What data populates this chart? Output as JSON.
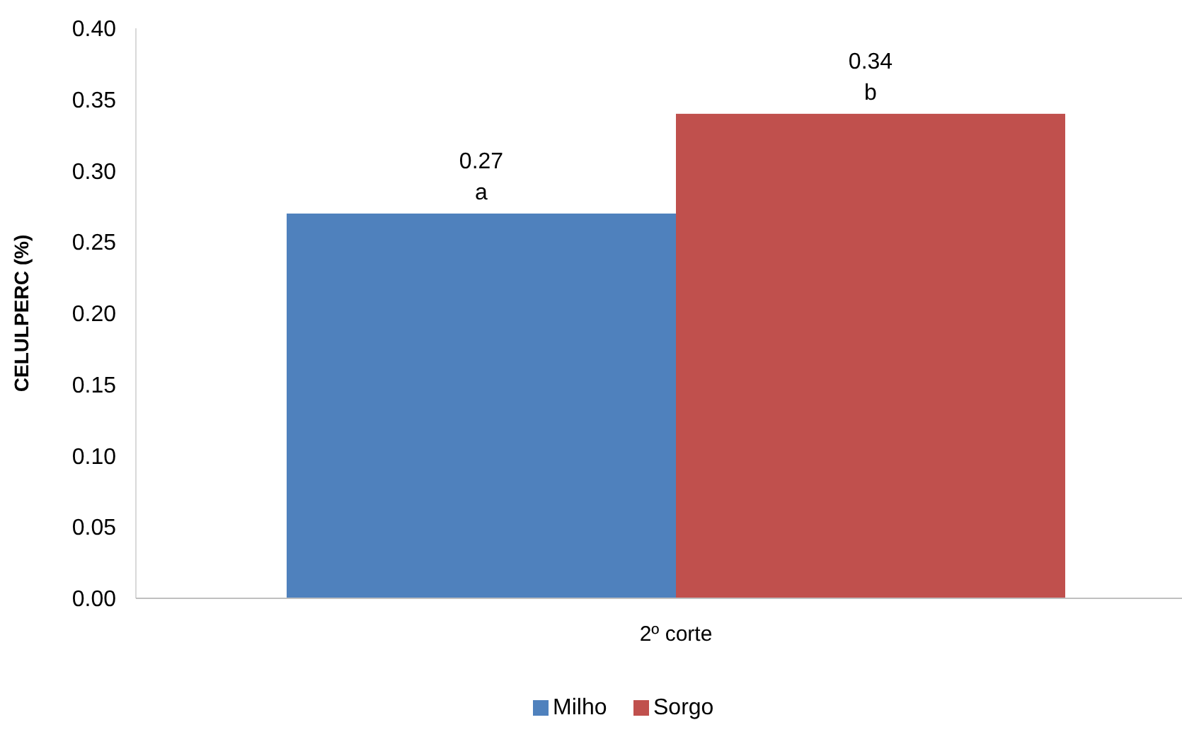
{
  "chart_data": {
    "type": "bar",
    "ylabel": "CELULPERC (%)",
    "categories": [
      "2º corte"
    ],
    "series": [
      {
        "name": "Milho",
        "color": "#4f81bd",
        "values": [
          0.27
        ],
        "value_labels": [
          "0.27\na"
        ]
      },
      {
        "name": "Sorgo",
        "color": "#c0504d",
        "values": [
          0.34
        ],
        "value_labels": [
          "0.34\nb"
        ]
      }
    ],
    "ylim": [
      0,
      0.4
    ],
    "yticks": [
      {
        "value": 0,
        "label": "0.00"
      },
      {
        "value": 0.05,
        "label": "0.05"
      },
      {
        "value": 0.1,
        "label": "0.10"
      },
      {
        "value": 0.15,
        "label": "0.15"
      },
      {
        "value": 0.2,
        "label": "0.20"
      },
      {
        "value": 0.25,
        "label": "0.25"
      },
      {
        "value": 0.3,
        "label": "0.30"
      },
      {
        "value": 0.35,
        "label": "0.35"
      },
      {
        "value": 0.4,
        "label": "0.40"
      }
    ],
    "legend": "bottom"
  }
}
